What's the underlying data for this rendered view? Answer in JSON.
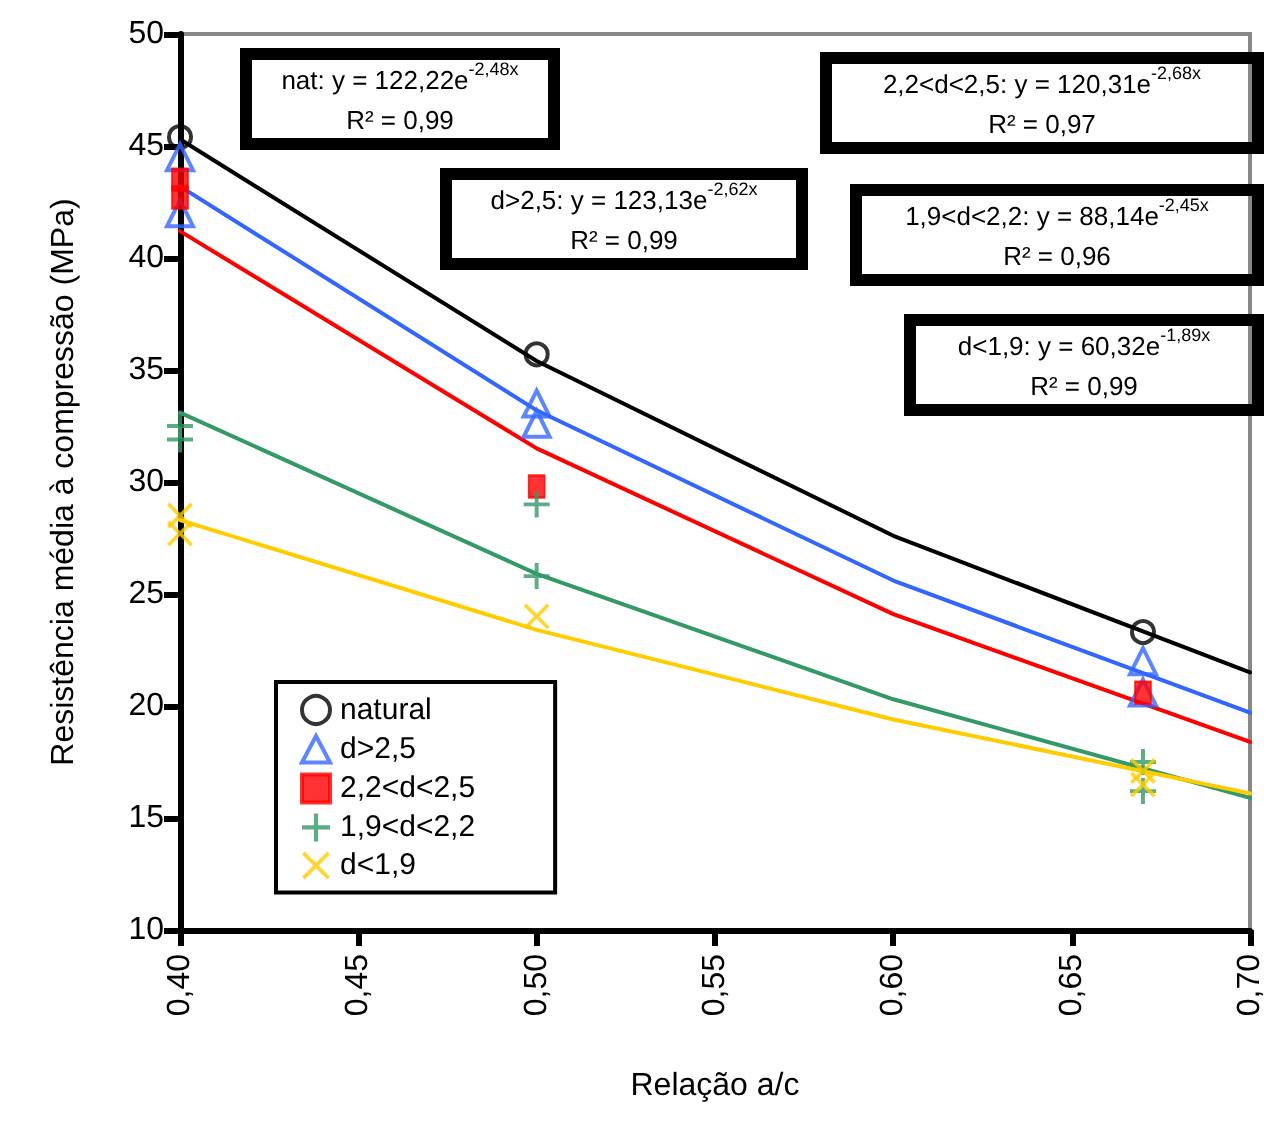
{
  "chart_data": {
    "type": "scatter",
    "xlabel": "Relação a/c",
    "ylabel": "Resistência média à compressão (MPa)",
    "xlim": [
      0.4,
      0.7
    ],
    "xticks": [
      {
        "value": 0.4,
        "label": "0,40"
      },
      {
        "value": 0.45,
        "label": "0,45"
      },
      {
        "value": 0.5,
        "label": "0,50"
      },
      {
        "value": 0.55,
        "label": "0,55"
      },
      {
        "value": 0.6,
        "label": "0,60"
      },
      {
        "value": 0.65,
        "label": "0,65"
      },
      {
        "value": 0.7,
        "label": "0,70"
      }
    ],
    "ylim": [
      10,
      50
    ],
    "yticks": [
      10,
      15,
      20,
      25,
      30,
      35,
      40,
      45,
      50
    ],
    "grid": false,
    "legend": "bottom left",
    "annotations": [
      "nat: y = 122,22e$^{-2,48x}$\nR² = 0,99",
      "d>2,5: y = 123,13e$^{-2,62x}$\nR² = 0,99",
      "2,2<d<2,5: y = 120,31e$^{-2,68x}$\nR² = 0,97",
      "1,9<d<2,2: y = 88,14e$^{-2,45x}$\nR² = 0,96",
      "d<1,9: y = 60,32e$^{-1,89x}$\nR² = 0,99"
    ],
    "series": [
      {
        "type": "line",
        "color": "#000000",
        "marker": "none",
        "x": [
          0.4,
          0.5,
          0.6,
          0.7
        ],
        "values": [
          45.3,
          35.4,
          27.6,
          21.5
        ]
      },
      {
        "type": "line",
        "color": "#3366ff",
        "marker": "none",
        "x": [
          0.4,
          0.5,
          0.6,
          0.7
        ],
        "values": [
          43.2,
          33.2,
          25.6,
          19.7
        ]
      },
      {
        "type": "line",
        "color": "#ff0000",
        "marker": "none",
        "x": [
          0.4,
          0.5,
          0.6,
          0.7
        ],
        "values": [
          41.2,
          31.5,
          24.1,
          18.4
        ]
      },
      {
        "type": "line",
        "color": "#339966",
        "marker": "none",
        "x": [
          0.4,
          0.5,
          0.6,
          0.7
        ],
        "values": [
          33.1,
          25.9,
          20.3,
          15.9
        ]
      },
      {
        "type": "line",
        "color": "#ffcc00",
        "marker": "none",
        "x": [
          0.4,
          0.5,
          0.6,
          0.7
        ],
        "values": [
          28.3,
          23.4,
          19.4,
          16.1
        ]
      },
      {
        "name": "natural",
        "color": "#000000",
        "marker": "circle",
        "x": [
          0.4,
          0.5,
          0.67
        ],
        "values": [
          45.4,
          35.7,
          23.3
        ]
      },
      {
        "name": "d>2,5",
        "color": "#3366ff",
        "marker": "triangle",
        "x": [
          0.4,
          0.4,
          0.5,
          0.5,
          0.67,
          0.67
        ],
        "values": [
          44.5,
          42,
          33.5,
          32.6,
          22,
          20.6
        ]
      },
      {
        "name": "2,2<d<2,5",
        "color": "#ff0000",
        "marker": "square",
        "x": [
          0.4,
          0.4,
          0.5,
          0.67
        ],
        "values": [
          43.5,
          42.7,
          29.8,
          20.6
        ]
      },
      {
        "name": "1,9<d<2,2",
        "color": "#339966",
        "marker": "cross",
        "x": [
          0.4,
          0.4,
          0.5,
          0.5,
          0.67,
          0.67
        ],
        "values": [
          32.5,
          31.9,
          29,
          25.8,
          17.5,
          16.2
        ]
      },
      {
        "name": "d<1,9",
        "color": "#ffcc00",
        "marker": "x",
        "x": [
          0.4,
          0.4,
          0.5,
          0.67,
          0.67
        ],
        "values": [
          28.5,
          27.7,
          24,
          17.1,
          16.5
        ]
      }
    ]
  }
}
